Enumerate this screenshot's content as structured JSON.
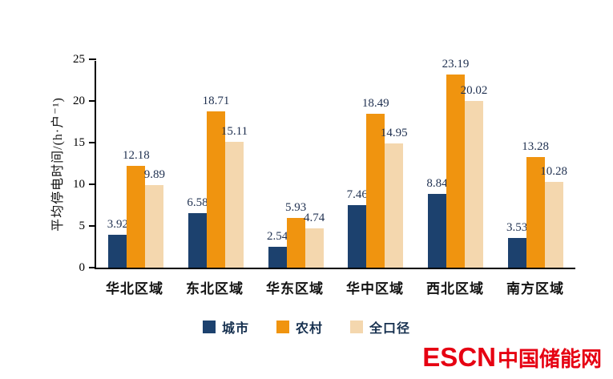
{
  "chart_data": {
    "type": "bar",
    "title": "",
    "xlabel": "",
    "ylabel": "平均停电时间/(h·户⁻¹)",
    "ylim": [
      0,
      25
    ],
    "yticks": [
      0,
      5,
      10,
      15,
      20,
      25
    ],
    "grid": false,
    "legend_position": "bottom",
    "categories": [
      "华北区域",
      "东北区域",
      "华东区域",
      "华中区域",
      "西北区域",
      "南方区域"
    ],
    "series": [
      {
        "name": "城市",
        "color": "#1c416e",
        "values": [
          3.92,
          6.58,
          2.54,
          7.46,
          8.84,
          3.53
        ]
      },
      {
        "name": "农村",
        "color": "#f0940f",
        "values": [
          12.18,
          18.71,
          5.93,
          18.49,
          23.19,
          13.28
        ]
      },
      {
        "name": "全口径",
        "color": "#f4d7ae",
        "values": [
          9.89,
          15.11,
          4.74,
          14.95,
          20.02,
          10.28
        ]
      }
    ]
  },
  "watermark": {
    "latin": "ESCN",
    "cn": "中国储能网",
    "color": "#e60012"
  }
}
